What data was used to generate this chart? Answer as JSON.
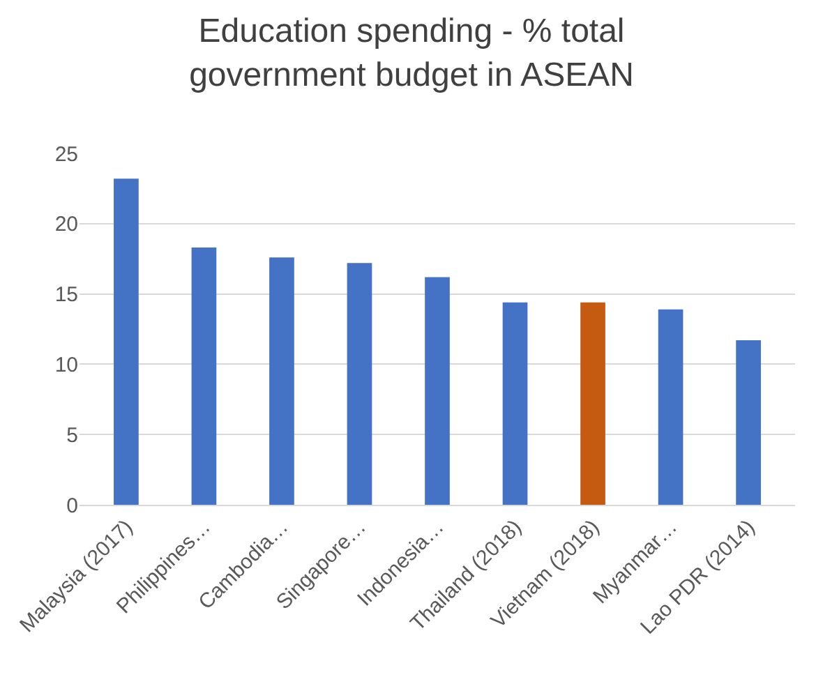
{
  "chart_data": {
    "type": "bar",
    "title": "Education spending - % total government budget in ASEAN",
    "categories": [
      "Malaysia (2017)",
      "Philippines…",
      "Cambodia…",
      "Singapore…",
      "Indonesia…",
      "Thailand (2018)",
      "Vietnam (2018)",
      "Myanmar…",
      "Lao PDR (2014)"
    ],
    "values": [
      23.2,
      18.3,
      17.6,
      17.2,
      16.2,
      14.4,
      14.4,
      13.9,
      11.7
    ],
    "colors": [
      "#4472c4",
      "#4472c4",
      "#4472c4",
      "#4472c4",
      "#4472c4",
      "#4472c4",
      "#c55a11",
      "#4472c4",
      "#4472c4"
    ],
    "ylim": [
      0,
      25
    ],
    "yticks": [
      0,
      5,
      10,
      15,
      20,
      25
    ],
    "grid": "y"
  }
}
